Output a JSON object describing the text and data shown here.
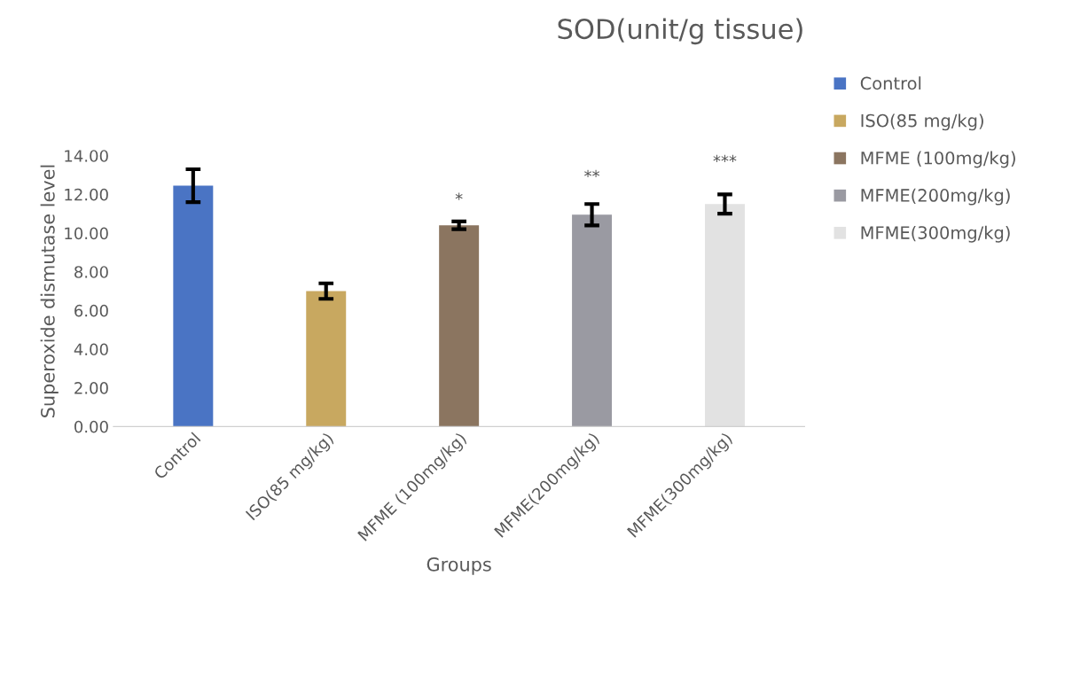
{
  "chart_data": {
    "type": "bar",
    "title": "SOD(unit/g tissue)",
    "xlabel": "Groups",
    "ylabel": "Superoxide dismutase level",
    "categories": [
      "Control",
      "ISO(85 mg/kg)",
      "MFME (100mg/kg)",
      "MFME(200mg/kg)",
      "MFME(300mg/kg)"
    ],
    "series": [
      {
        "name": "Control",
        "color": "#4a74c4",
        "values": [
          12.45,
          null,
          null,
          null,
          null
        ],
        "errors": [
          0.85,
          null,
          null,
          null,
          null
        ]
      },
      {
        "name": "ISO(85 mg/kg)",
        "color": "#c8a860",
        "values": [
          null,
          7.0,
          null,
          null,
          null
        ],
        "errors": [
          null,
          0.4,
          null,
          null,
          null
        ]
      },
      {
        "name": "MFME (100mg/kg)",
        "color": "#8b7560",
        "values": [
          null,
          null,
          10.4,
          null,
          null
        ],
        "errors": [
          null,
          null,
          0.2,
          null,
          null
        ]
      },
      {
        "name": "MFME(200mg/kg)",
        "color": "#9a9aa2",
        "values": [
          null,
          null,
          null,
          10.95,
          null
        ],
        "errors": [
          null,
          null,
          null,
          0.55,
          null
        ]
      },
      {
        "name": "MFME(300mg/kg)",
        "color": "#e2e2e2",
        "values": [
          null,
          null,
          null,
          null,
          11.5
        ],
        "errors": [
          null,
          null,
          null,
          null,
          0.5
        ]
      }
    ],
    "ylim": [
      0,
      14
    ],
    "yticks": [
      {
        "value": 0,
        "label": "0.00"
      },
      {
        "value": 2,
        "label": "2.00"
      },
      {
        "value": 4,
        "label": "4.00"
      },
      {
        "value": 6,
        "label": "6.00"
      },
      {
        "value": 8,
        "label": "8.00"
      },
      {
        "value": 10,
        "label": "10.00"
      },
      {
        "value": 12,
        "label": "12.00"
      },
      {
        "value": 14,
        "label": "14.00"
      }
    ],
    "annotations": [
      "*",
      "**",
      "***"
    ],
    "legend": "right",
    "grid": false
  }
}
